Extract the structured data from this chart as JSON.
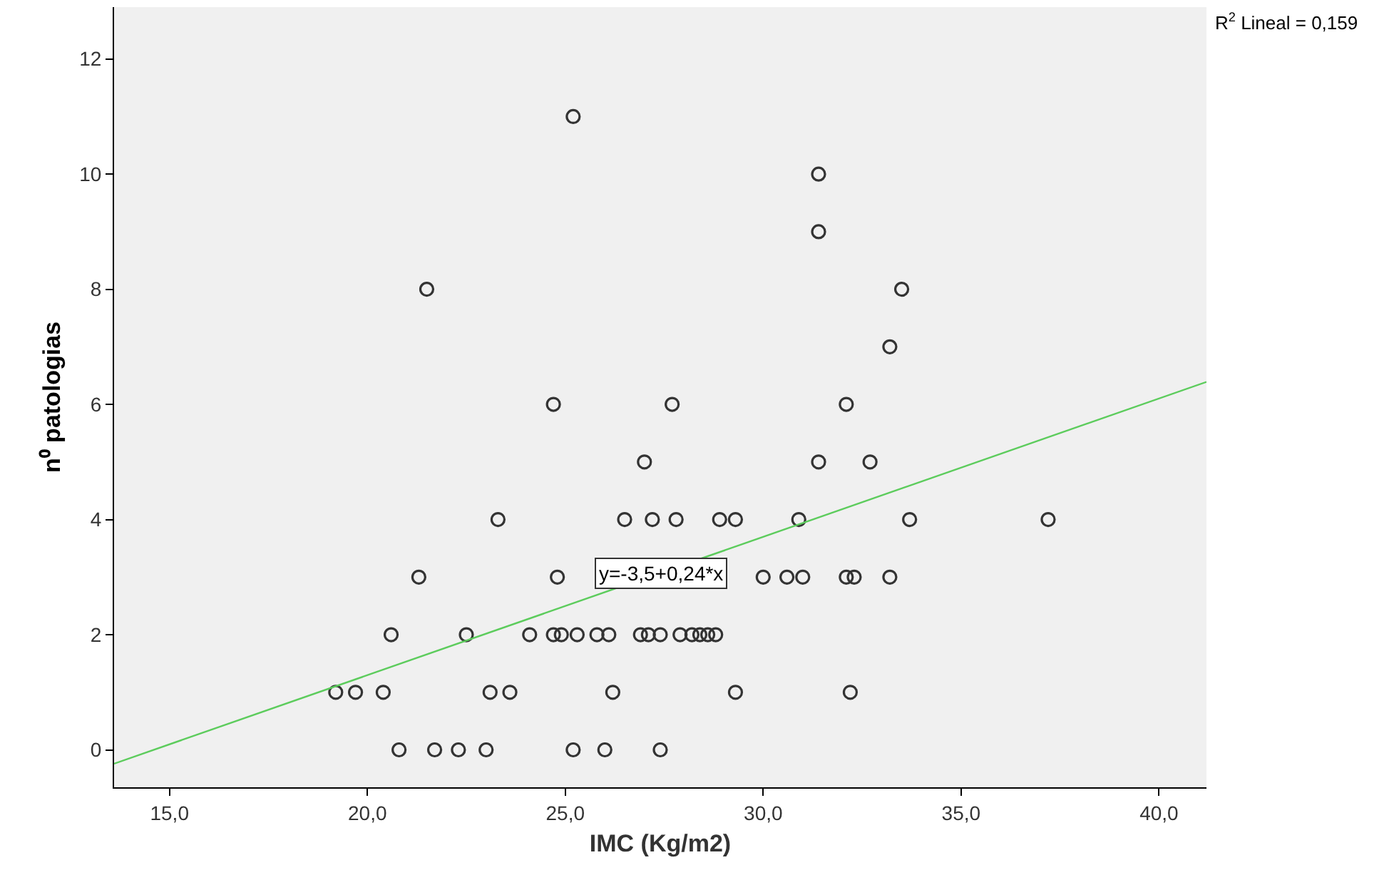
{
  "chart_data": {
    "type": "scatter",
    "xlabel": "IMC (Kg/m2)",
    "ylabel": "n⁰ patologias",
    "xlim": [
      13.6,
      41.2
    ],
    "ylim": [
      -0.65,
      12.9
    ],
    "xticks": [
      {
        "value": 15,
        "label": "15,0"
      },
      {
        "value": 20,
        "label": "20,0"
      },
      {
        "value": 25,
        "label": "25,0"
      },
      {
        "value": 30,
        "label": "30,0"
      },
      {
        "value": 35,
        "label": "35,0"
      },
      {
        "value": 40,
        "label": "40,0"
      }
    ],
    "yticks": [
      0,
      2,
      4,
      6,
      8,
      10,
      12
    ],
    "grid": false,
    "marker": "circle",
    "series": [
      {
        "type": "scatter",
        "color": "#333333",
        "x": [
          20.8,
          21.7,
          22.3,
          23.0,
          25.2,
          26.0,
          27.4,
          19.2,
          19.7,
          20.4,
          23.1,
          23.6,
          26.2,
          29.3,
          32.2,
          20.6,
          22.5,
          24.1,
          24.7,
          24.9,
          25.3,
          25.8,
          26.1,
          26.9,
          27.1,
          27.4,
          27.9,
          28.2,
          28.4,
          28.6,
          28.8,
          21.3,
          24.8,
          30.0,
          30.6,
          31.0,
          32.1,
          32.3,
          33.2,
          23.3,
          26.5,
          27.2,
          27.8,
          28.9,
          29.3,
          30.9,
          33.7,
          37.2,
          27.0,
          31.4,
          32.7,
          24.7,
          27.7,
          32.1,
          33.2,
          21.5,
          33.5,
          31.4,
          31.4,
          25.2
        ],
        "values": [
          0,
          0,
          0,
          0,
          0,
          0,
          0,
          1,
          1,
          1,
          1,
          1,
          1,
          1,
          1,
          2,
          2,
          2,
          2,
          2,
          2,
          2,
          2,
          2,
          2,
          2,
          2,
          2,
          2,
          2,
          2,
          3,
          3,
          3,
          3,
          3,
          3,
          3,
          3,
          4,
          4,
          4,
          4,
          4,
          4,
          4,
          4,
          4,
          5,
          5,
          5,
          6,
          6,
          6,
          7,
          8,
          8,
          9,
          10,
          11
        ]
      },
      {
        "type": "line",
        "color": "#5ccc5c",
        "line_style": "solid",
        "marker": "none",
        "x": [
          13.6,
          41.2
        ],
        "values": [
          -0.24,
          6.39
        ]
      }
    ],
    "annotations": [
      "R$^{2}$ Lineal = 0,159",
      {
        "text": "y=-3,5+0,24*x",
        "x": 27.4,
        "y": 3.06
      }
    ]
  }
}
